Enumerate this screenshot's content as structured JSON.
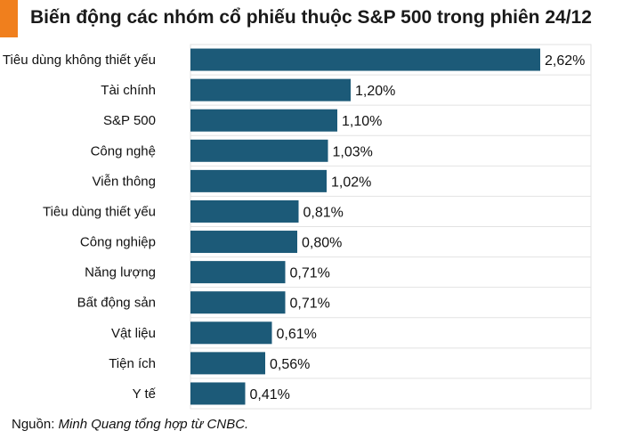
{
  "title": "Biến động các nhóm cổ phiếu thuộc S&P 500 trong phiên 24/12",
  "colors": {
    "accent": "#f07f1d",
    "bar": "#1c5a78",
    "grid": "#e2e2e2"
  },
  "source": {
    "prefix": "Nguồn:",
    "text": "Minh Quang tổng hợp từ CNBC."
  },
  "chart_data": {
    "type": "bar",
    "orientation": "horizontal",
    "categories": [
      "Tiêu dùng không thiết yếu",
      "Tài chính",
      "S&P 500",
      "Công nghệ",
      "Viễn thông",
      "Tiêu dùng thiết yếu",
      "Công nghiệp",
      "Năng lượng",
      "Bất động sản",
      "Vật liệu",
      "Tiện ích",
      "Y tế"
    ],
    "values": [
      2.62,
      1.2,
      1.1,
      1.03,
      1.02,
      0.81,
      0.8,
      0.71,
      0.71,
      0.61,
      0.56,
      0.41
    ],
    "data_labels": [
      "2,62%",
      "1,20%",
      "1,10%",
      "1,03%",
      "1,02%",
      "0,81%",
      "0,80%",
      "0,71%",
      "0,71%",
      "0,61%",
      "0,56%",
      "0,41%"
    ],
    "xlim": [
      0,
      3.0
    ],
    "grid": true,
    "legend": "none"
  }
}
